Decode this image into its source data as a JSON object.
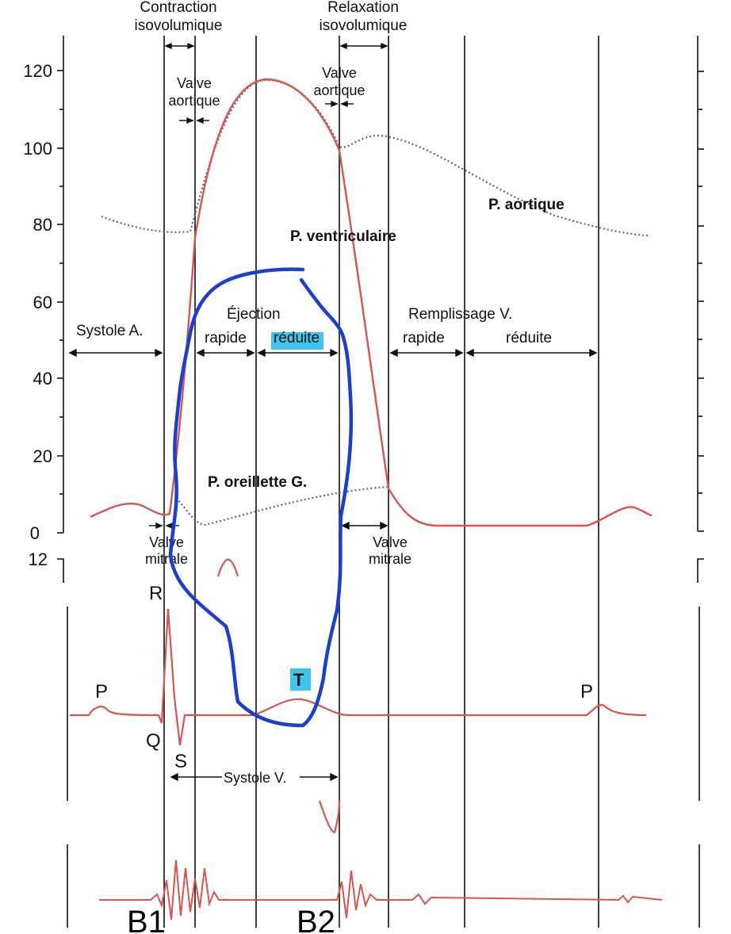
{
  "header": {
    "contraction_line1": "Contraction",
    "contraction_line2": "isovolumique",
    "relaxation_line1": "Relaxation",
    "relaxation_line2": "isovolumique"
  },
  "pressure_axis": {
    "ticks": [
      "120",
      "100",
      "80",
      "60",
      "40",
      "20",
      "0"
    ]
  },
  "ecg_axis": {
    "ticks": [
      "12"
    ]
  },
  "valves": {
    "aortic_open": [
      "Valve",
      "aortique"
    ],
    "aortic_close": [
      "Valve",
      "aortique"
    ],
    "mitral_close": [
      "Valve",
      "mitrale"
    ],
    "mitral_open": [
      "Valve",
      "mitrale"
    ]
  },
  "curves": {
    "aortic": "P. aortique",
    "ventricular": "P. ventriculaire",
    "atrial": "P. oreillette G."
  },
  "phases": {
    "atrial_systole": "Systole A.",
    "ejection": "Éjection",
    "ejection_rapid": "rapide",
    "ejection_reduced": "réduite",
    "filling": "Remplissage V.",
    "filling_rapid": "rapide",
    "filling_reduced": "réduite"
  },
  "ecg": {
    "p1": "P",
    "r": "R",
    "q": "Q",
    "s": "S",
    "t": "T",
    "p2": "P",
    "systole_v": "Systole V."
  },
  "heart_sounds": {
    "b1": "B1",
    "b2": "B2"
  },
  "colors": {
    "curve_red": "#d9534f",
    "annotation_blue": "#1a3fd1",
    "highlight_cyan": "#3fc4ec",
    "dotted_gray": "#666666"
  }
}
